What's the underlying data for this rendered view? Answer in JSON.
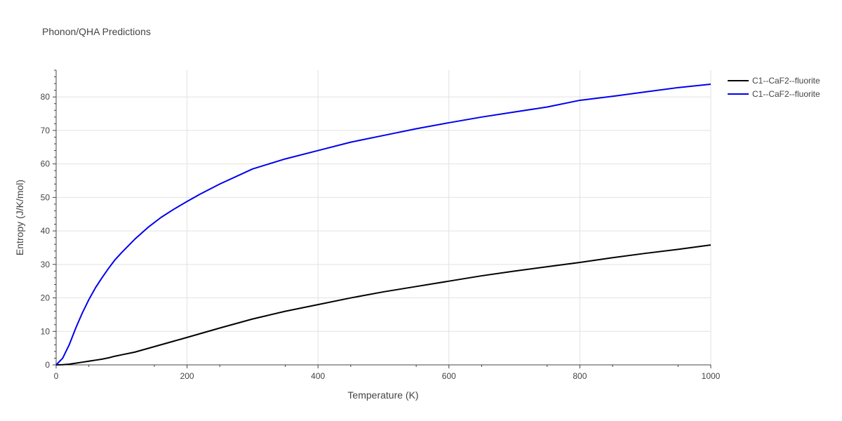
{
  "chart_data": {
    "type": "line",
    "title": "Phonon/QHA Predictions",
    "xlabel": "Temperature (K)",
    "ylabel": "Entropy (J/K/mol)",
    "xlim": [
      0,
      1000
    ],
    "ylim": [
      0,
      88
    ],
    "x_ticks": [
      0,
      200,
      400,
      600,
      800,
      1000
    ],
    "x_tick_labels": [
      "0",
      "200",
      "400",
      "600",
      "800",
      "1000"
    ],
    "y_ticks": [
      0,
      10,
      20,
      30,
      40,
      50,
      60,
      70,
      80
    ],
    "y_tick_labels": [
      "0",
      "10",
      "20",
      "30",
      "40",
      "50",
      "60",
      "70",
      "80"
    ],
    "grid": true,
    "legend_position": "top-right",
    "series": [
      {
        "name": "C1--CaF2--fluorite",
        "color": "#000000",
        "x": [
          0,
          10,
          20,
          30,
          40,
          50,
          60,
          70,
          80,
          90,
          100,
          120,
          140,
          160,
          180,
          200,
          250,
          300,
          350,
          400,
          450,
          500,
          550,
          600,
          650,
          700,
          750,
          800,
          850,
          900,
          950,
          1000
        ],
        "y": [
          0,
          0.05,
          0.2,
          0.5,
          0.8,
          1.1,
          1.4,
          1.7,
          2.1,
          2.6,
          3.0,
          3.8,
          4.9,
          6.0,
          7.1,
          8.2,
          11.0,
          13.7,
          16.0,
          18.0,
          20.0,
          21.8,
          23.4,
          25.0,
          26.6,
          28.0,
          29.3,
          30.6,
          32.0,
          33.3,
          34.5,
          35.8
        ]
      },
      {
        "name": "C1--CaF2--fluorite",
        "color": "#0000ee",
        "x": [
          0,
          10,
          20,
          30,
          40,
          50,
          60,
          70,
          80,
          90,
          100,
          120,
          140,
          160,
          180,
          200,
          220,
          250,
          300,
          350,
          400,
          450,
          500,
          550,
          600,
          650,
          700,
          750,
          800,
          850,
          900,
          950,
          1000
        ],
        "y": [
          0,
          2.0,
          6.0,
          11.0,
          15.5,
          19.5,
          23.0,
          26.0,
          28.8,
          31.4,
          33.5,
          37.5,
          41.0,
          44.0,
          46.5,
          48.8,
          51.0,
          54.0,
          58.5,
          61.5,
          64.0,
          66.5,
          68.5,
          70.5,
          72.3,
          74.0,
          75.5,
          77.0,
          79.0,
          80.2,
          81.5,
          82.8,
          83.8
        ]
      }
    ]
  }
}
